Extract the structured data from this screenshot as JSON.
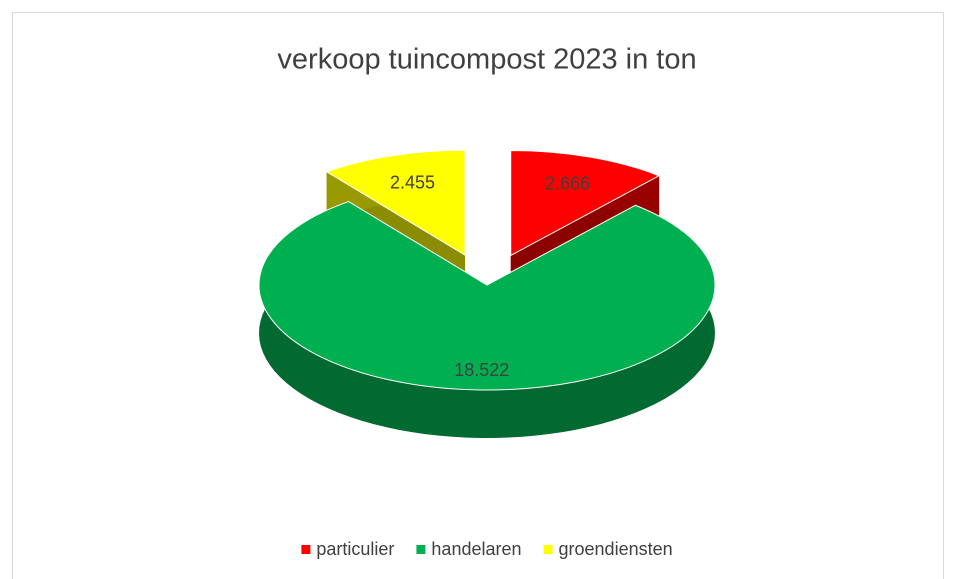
{
  "chart_data": {
    "type": "pie3d",
    "title": "verkoop tuincompost 2023 in ton",
    "categories": [
      "particulier",
      "handelaren",
      "groendiensten"
    ],
    "values": [
      2666,
      18522,
      2455
    ],
    "value_labels": [
      "2.666",
      "18.522",
      "2.455"
    ],
    "colors": [
      "#ff0000",
      "#00b050",
      "#ffff00"
    ],
    "legend": "bottom"
  }
}
